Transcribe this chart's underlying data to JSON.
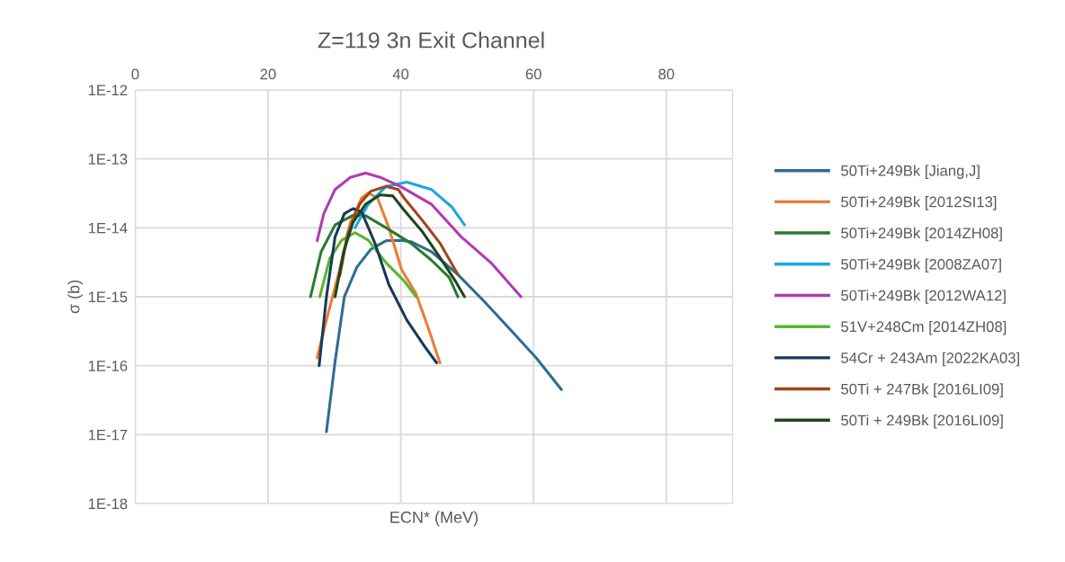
{
  "chart_data": {
    "type": "line",
    "title": "Z=119 3n Exit Channel",
    "xlabel": "ECN* (MeV)",
    "ylabel": "σ (b)",
    "log": "y",
    "xlim": [
      0,
      90
    ],
    "xticks": [
      0,
      20,
      40,
      60,
      80
    ],
    "ylim": [
      1e-18,
      1e-12
    ],
    "yticks": [
      {
        "value": 1e-18,
        "label": "1E-18"
      },
      {
        "value": 1e-17,
        "label": "1E-17"
      },
      {
        "value": 1e-16,
        "label": "1E-16"
      },
      {
        "value": 1e-15,
        "label": "1E-15"
      },
      {
        "value": 1e-14,
        "label": "1E-14"
      },
      {
        "value": 1e-13,
        "label": "1E-13"
      },
      {
        "value": 1e-12,
        "label": "1E-12"
      }
    ],
    "grid": true,
    "legend": "right",
    "marker": "none",
    "line_style": "solid",
    "series": [
      {
        "name": "50Ti+249Bk [Jiang,J]",
        "color": "#2e6d93",
        "x": [
          28.8,
          30.1,
          31.5,
          33.4,
          35.5,
          37.8,
          39.9,
          41.5,
          44.6,
          48.6,
          52.7,
          56.8,
          60.4,
          64.2
        ],
        "values": [
          1.1e-17,
          1.15e-16,
          1e-15,
          2.7e-15,
          4.9e-15,
          6.5e-15,
          6.6e-15,
          6.3e-15,
          4.5e-15,
          2.1e-15,
          8.3e-16,
          3.1e-16,
          1.3e-16,
          4.5e-17
        ]
      },
      {
        "name": "50Ti+249Bk [2012SI13]",
        "color": "#ed7d31",
        "x": [
          27.4,
          28.8,
          30.7,
          32.4,
          34.1,
          35.1,
          36.5,
          38.2,
          40.1,
          42.3,
          44.2,
          45.9
        ],
        "values": [
          1.3e-16,
          4.6e-16,
          2.3e-15,
          1.2e-14,
          2.7e-14,
          3.2e-14,
          2.7e-14,
          1e-14,
          2.5e-15,
          1.1e-15,
          3.4e-16,
          1.1e-16
        ]
      },
      {
        "name": "50Ti+249Bk [2014ZH08]",
        "color": "#2a7a30",
        "x": [
          26.4,
          28.0,
          30.1,
          32.7,
          34.7,
          37.8,
          41.5,
          44.6,
          47.3,
          48.6
        ],
        "values": [
          1e-15,
          4.5e-15,
          1.1e-14,
          1.5e-14,
          1.5e-14,
          1e-14,
          6e-15,
          3.4e-15,
          1.9e-15,
          1e-15
        ]
      },
      {
        "name": "50Ti+249Bk [2008ZA07]",
        "color": "#1ea7e0",
        "x": [
          33.1,
          35.1,
          37.8,
          40.9,
          44.6,
          47.7,
          49.6
        ],
        "values": [
          1e-14,
          2.2e-14,
          4e-14,
          4.6e-14,
          3.6e-14,
          2e-14,
          1.1e-14
        ]
      },
      {
        "name": "50Ti+249Bk [2012WA12]",
        "color": "#b03cb0",
        "x": [
          27.4,
          28.4,
          30.1,
          32.4,
          34.7,
          36.9,
          39.9,
          44.6,
          49.1,
          53.6,
          58.1
        ],
        "values": [
          6.5e-15,
          1.6e-14,
          3.6e-14,
          5.4e-14,
          6.2e-14,
          5.4e-14,
          4e-14,
          2.2e-14,
          7.4e-15,
          3.1e-15,
          1e-15
        ]
      },
      {
        "name": "51V+248Cm [2014ZH08]",
        "color": "#5ab52e",
        "x": [
          27.8,
          29.3,
          31.1,
          33.1,
          35.1,
          37.8,
          40.5,
          42.3
        ],
        "values": [
          1e-15,
          3.6e-15,
          6.6e-15,
          8.5e-15,
          6.6e-15,
          3.1e-15,
          1.7e-15,
          1e-15
        ]
      },
      {
        "name": "54Cr + 243Am [2022KA03]",
        "color": "#173a58",
        "x": [
          27.7,
          28.8,
          30.1,
          31.5,
          32.8,
          34.1,
          36.1,
          38.2,
          40.9,
          43.6,
          45.4
        ],
        "values": [
          1e-16,
          1e-15,
          7.4e-15,
          1.6e-14,
          1.9e-14,
          1.7e-14,
          6e-15,
          1.5e-15,
          4.6e-16,
          1.9e-16,
          1.1e-16
        ]
      },
      {
        "name": "50Ti + 247Bk [2016LI09]",
        "color": "#a0461c",
        "x": [
          30.8,
          32.0,
          33.8,
          35.5,
          37.8,
          39.6,
          40.5,
          43.2,
          45.9,
          48.6
        ],
        "values": [
          2e-15,
          8.1e-15,
          2.2e-14,
          3.4e-14,
          4e-14,
          3.6e-14,
          2.7e-14,
          1.3e-14,
          6e-15,
          2.1e-15
        ]
      },
      {
        "name": "50Ti + 249Bk [2016LI09]",
        "color": "#1e4620",
        "x": [
          30.1,
          31.4,
          32.8,
          34.7,
          36.9,
          38.8,
          40.5,
          43.2,
          45.9,
          48.2,
          49.6
        ],
        "values": [
          1e-15,
          4.5e-15,
          1.2e-14,
          2.2e-14,
          3e-14,
          2.9e-14,
          1.8e-14,
          8.9e-15,
          3.7e-15,
          1.7e-15,
          1e-15
        ]
      }
    ]
  }
}
